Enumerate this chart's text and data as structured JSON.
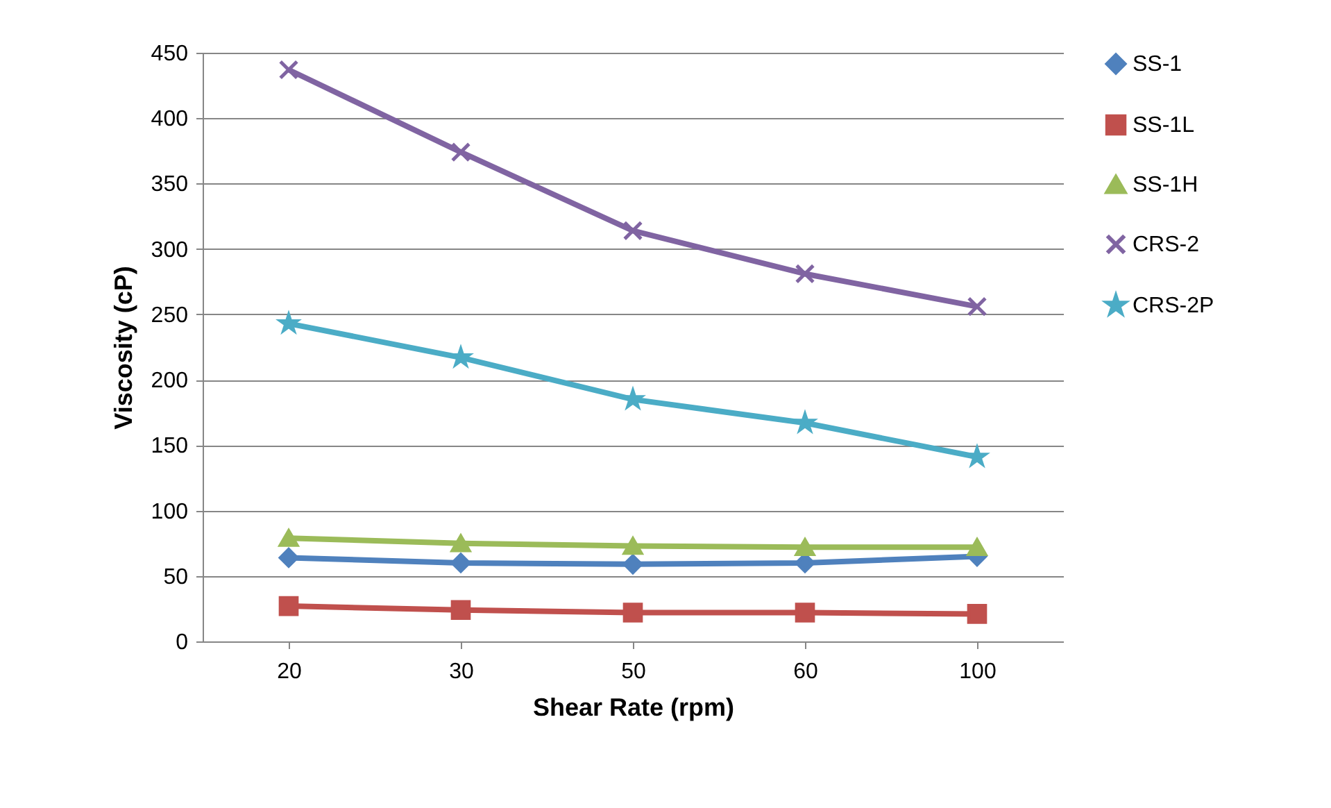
{
  "chart_data": {
    "type": "line",
    "xlabel": "Shear Rate (rpm)",
    "ylabel": "Viscosity (cP)",
    "categories": [
      "20",
      "30",
      "50",
      "60",
      "100"
    ],
    "series": [
      {
        "name": "SS-1",
        "color": "#4f81bd",
        "marker": "diamond",
        "values": [
          64,
          60,
          59,
          60,
          65
        ]
      },
      {
        "name": "SS-1L",
        "color": "#c0504d",
        "marker": "square",
        "values": [
          27,
          24,
          22,
          22,
          21
        ]
      },
      {
        "name": "SS-1H",
        "color": "#9bbb59",
        "marker": "triangle",
        "values": [
          79,
          75,
          73,
          72,
          72
        ]
      },
      {
        "name": "CRS-2",
        "color": "#8064a2",
        "marker": "cross",
        "values": [
          437,
          374,
          314,
          281,
          256
        ]
      },
      {
        "name": "CRS-2P",
        "color": "#4bacc6",
        "marker": "star",
        "values": [
          243,
          217,
          185,
          167,
          141
        ]
      }
    ],
    "ylim": [
      0,
      450
    ],
    "yticks": [
      0,
      50,
      100,
      150,
      200,
      250,
      300,
      350,
      400,
      450
    ],
    "grid": "y",
    "legend": "right",
    "line_style": "solid"
  }
}
